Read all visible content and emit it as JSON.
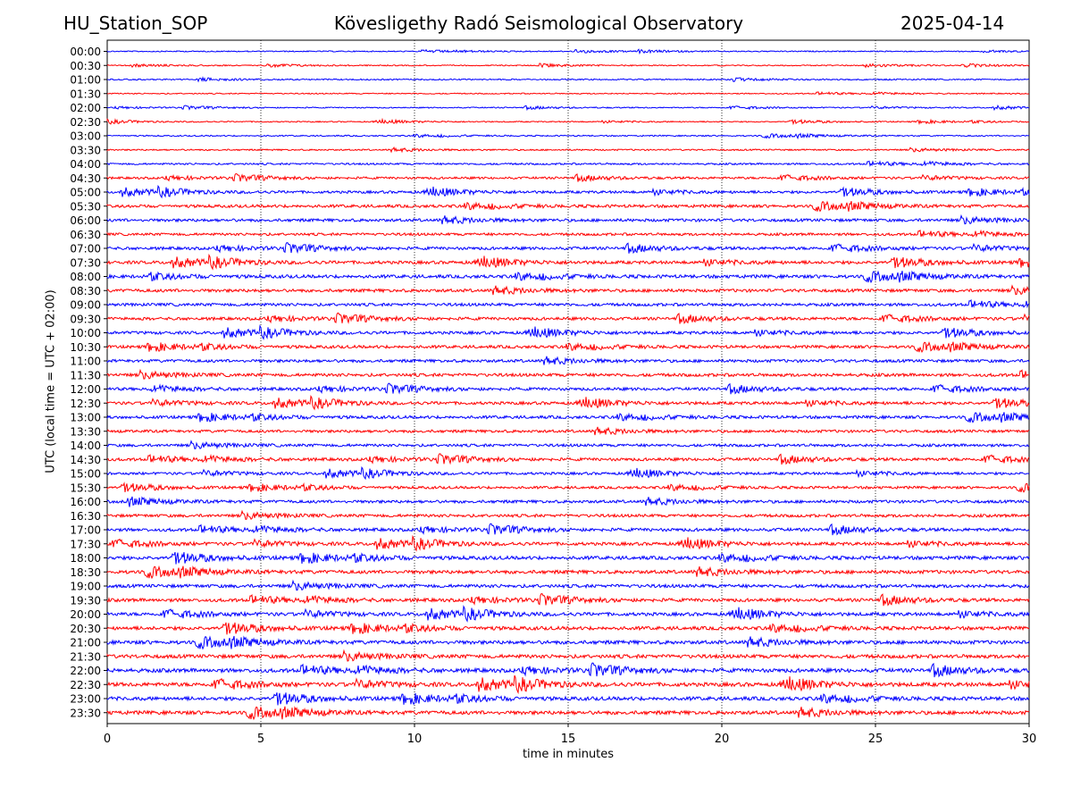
{
  "header": {
    "station": "HU_Station_SOP",
    "observatory": "Kövesligethy Radó Seismological Observatory",
    "date": "2025-04-14"
  },
  "chart_data": {
    "type": "line",
    "title": "Kövesligethy Radó Seismological Observatory",
    "xlabel": "time in minutes",
    "ylabel": "UTC (local time = UTC + 02:00)",
    "xlim": [
      0,
      30
    ],
    "x_ticks": [
      0,
      5,
      10,
      15,
      20,
      25,
      30
    ],
    "vertical_gridlines": [
      5,
      10,
      15,
      20,
      25
    ],
    "grid": "vertical dotted",
    "row_labels": [
      "00:00",
      "00:30",
      "01:00",
      "01:30",
      "02:00",
      "02:30",
      "03:00",
      "03:30",
      "04:00",
      "04:30",
      "05:00",
      "05:30",
      "06:00",
      "06:30",
      "07:00",
      "07:30",
      "08:00",
      "08:30",
      "09:00",
      "09:30",
      "10:00",
      "10:30",
      "11:00",
      "11:30",
      "12:00",
      "12:30",
      "13:00",
      "13:30",
      "14:00",
      "14:30",
      "15:00",
      "15:30",
      "16:00",
      "16:30",
      "17:00",
      "17:30",
      "18:00",
      "18:30",
      "19:00",
      "19:30",
      "20:00",
      "20:30",
      "21:00",
      "21:30",
      "22:00",
      "22:30",
      "23:00",
      "23:30"
    ],
    "row_colors": [
      "#0000ff",
      "#ff0000"
    ],
    "row_amplitudes": [
      0.6,
      0.6,
      0.7,
      0.6,
      0.6,
      0.6,
      0.7,
      0.8,
      1.0,
      1.2,
      1.4,
      1.6,
      1.6,
      1.4,
      1.6,
      1.7,
      1.8,
      1.7,
      1.6,
      1.6,
      1.6,
      1.6,
      1.6,
      1.7,
      1.6,
      1.6,
      1.6,
      1.5,
      1.5,
      1.6,
      1.4,
      1.4,
      1.6,
      1.6,
      1.7,
      1.7,
      1.9,
      1.9,
      1.8,
      1.8,
      1.8,
      1.9,
      2.0,
      2.0,
      2.1,
      2.1,
      2.0,
      2.0
    ]
  }
}
